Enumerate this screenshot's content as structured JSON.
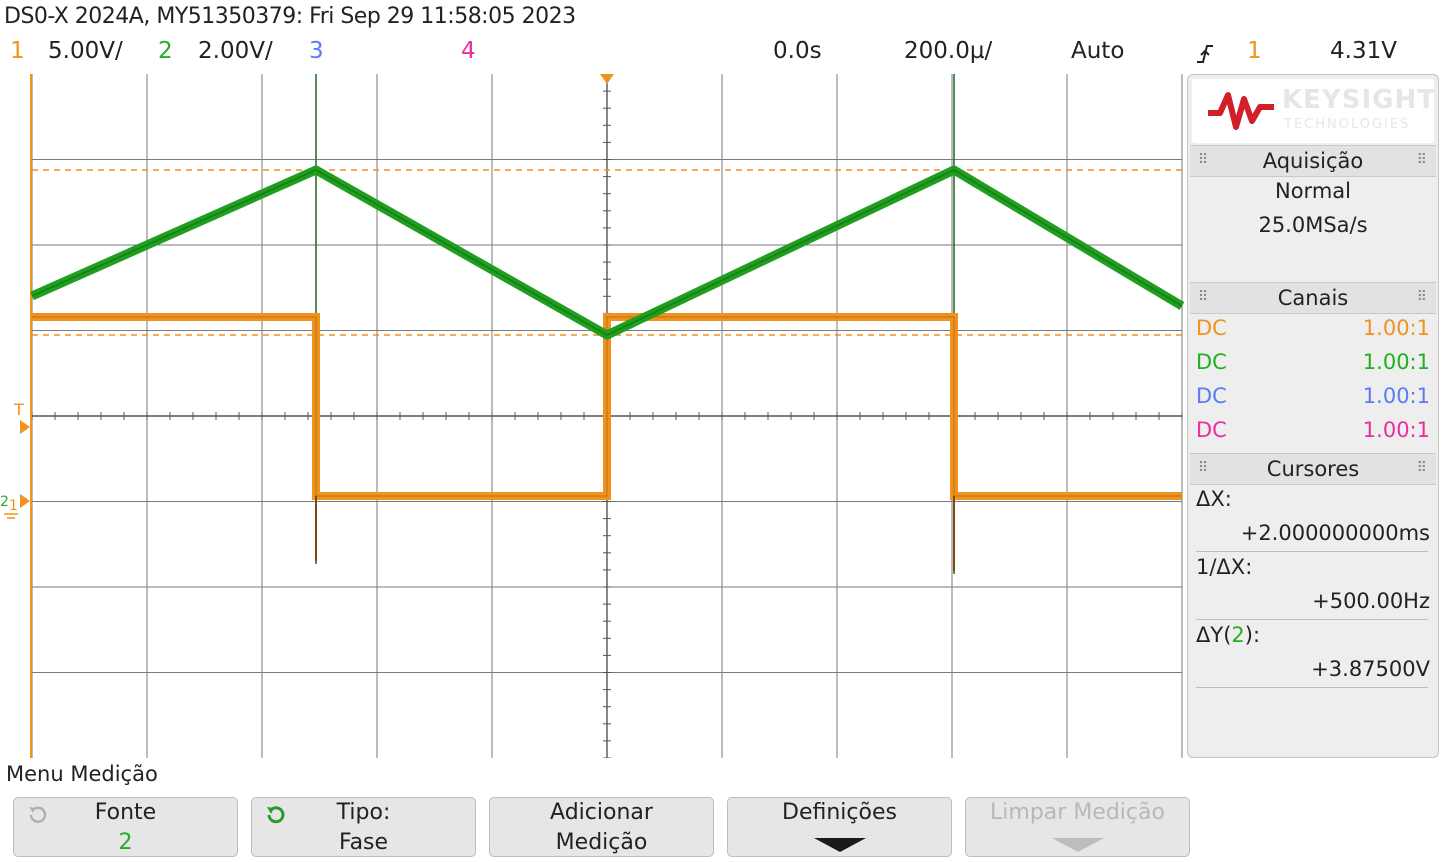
{
  "title": "DS0-X 2024A, MY51350379: Fri Sep 29 11:58:05 2023",
  "channel_bar": {
    "ch1_num": "1",
    "ch1_scale": "5.00V/",
    "ch2_num": "2",
    "ch2_scale": "2.00V/",
    "ch3_num": "3",
    "ch4_num": "4",
    "time_offset": "0.0s",
    "time_scale": "200.0µ/",
    "trigger_mode": "Auto",
    "trigger_slope_icon": "rising-edge-icon",
    "trigger_source": "1",
    "trigger_level": "4.31V"
  },
  "colors": {
    "ch1": "#f0921e",
    "ch2": "#20b020",
    "ch3": "#5a7cf0",
    "ch4": "#ea2ea0",
    "grid": "#7a7a7a",
    "trace_green": "#1f9e1f"
  },
  "markers": {
    "trigger_level": "T",
    "ch2_ground": "2",
    "ch1_ground": "1"
  },
  "side": {
    "logo": {
      "brand": "KEYSIGHT",
      "sub": "TECHNOLOGIES"
    },
    "acq_title": "Aquisição",
    "acq_mode": "Normal",
    "acq_rate": "25.0MSa/s",
    "channels_title": "Canais",
    "channels": [
      {
        "coupling": "DC",
        "probe": "1.00:1"
      },
      {
        "coupling": "DC",
        "probe": "1.00:1"
      },
      {
        "coupling": "DC",
        "probe": "1.00:1"
      },
      {
        "coupling": "DC",
        "probe": "1.00:1"
      }
    ],
    "cursors_title": "Cursores",
    "dx_label": "ΔX:",
    "dx_value": "+2.000000000ms",
    "inv_dx_label": "1/ΔX:",
    "inv_dx_value": "+500.00Hz",
    "dy_label_pre": "ΔY(",
    "dy_label_ch": "2",
    "dy_label_post": "):",
    "dy_value": "+3.87500V"
  },
  "menu": {
    "title": "Menu Medição",
    "buttons": [
      {
        "icon": "cycle-icon",
        "line1": "Fonte",
        "line2": "2"
      },
      {
        "icon": "cycle-icon",
        "line1": "Tipo:",
        "line2": "Fase"
      },
      {
        "line1": "Adicionar",
        "line2": "Medição"
      },
      {
        "icon": "down-arrow-icon",
        "line1": "Definições"
      },
      {
        "icon": "down-arrow-icon",
        "line1": "Limpar Medição",
        "disabled": true
      }
    ]
  }
}
